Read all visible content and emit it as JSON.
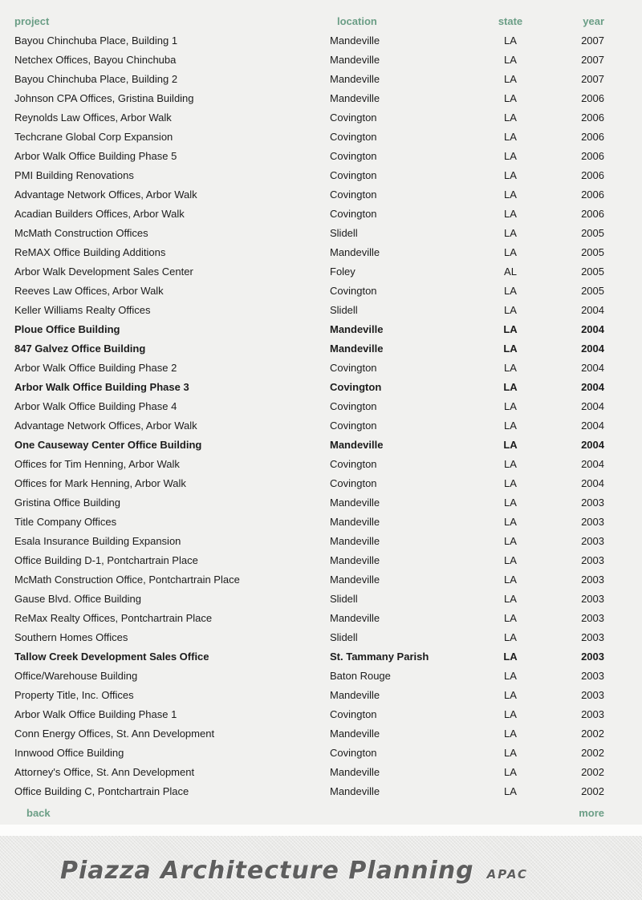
{
  "colors": {
    "accent_green": "#6b9e86",
    "page_bg": "#f1f1ef",
    "footer_bg": "#e9e9e7",
    "footer_text": "#5e5e5e",
    "row_text": "#1c1c1c"
  },
  "table": {
    "columns": [
      "project",
      "location",
      "state",
      "year"
    ],
    "rows": [
      {
        "project": "Bayou Chinchuba Place, Building 1",
        "location": "Mandeville",
        "state": "LA",
        "year": "2007",
        "bold": false
      },
      {
        "project": "Netchex Offices, Bayou Chinchuba",
        "location": "Mandeville",
        "state": "LA",
        "year": "2007",
        "bold": false
      },
      {
        "project": "Bayou Chinchuba Place, Building 2",
        "location": "Mandeville",
        "state": "LA",
        "year": "2007",
        "bold": false
      },
      {
        "project": "Johnson CPA Offices, Gristina Building",
        "location": "Mandeville",
        "state": "LA",
        "year": "2006",
        "bold": false
      },
      {
        "project": "Reynolds Law Offices, Arbor Walk",
        "location": "Covington",
        "state": "LA",
        "year": "2006",
        "bold": false
      },
      {
        "project": "Techcrane Global Corp Expansion",
        "location": "Covington",
        "state": "LA",
        "year": "2006",
        "bold": false
      },
      {
        "project": "Arbor Walk Office Building Phase 5",
        "location": "Covington",
        "state": "LA",
        "year": "2006",
        "bold": false
      },
      {
        "project": "PMI Building Renovations",
        "location": "Covington",
        "state": "LA",
        "year": "2006",
        "bold": false
      },
      {
        "project": "Advantage Network Offices, Arbor Walk",
        "location": "Covington",
        "state": "LA",
        "year": "2006",
        "bold": false
      },
      {
        "project": "Acadian Builders Offices, Arbor Walk",
        "location": "Covington",
        "state": "LA",
        "year": "2006",
        "bold": false
      },
      {
        "project": "McMath Construction Offices",
        "location": "Slidell",
        "state": "LA",
        "year": "2005",
        "bold": false
      },
      {
        "project": "ReMAX Office Building Additions",
        "location": "Mandeville",
        "state": "LA",
        "year": "2005",
        "bold": false
      },
      {
        "project": "Arbor Walk Development Sales Center",
        "location": "Foley",
        "state": "AL",
        "year": "2005",
        "bold": false
      },
      {
        "project": "Reeves Law Offices, Arbor Walk",
        "location": "Covington",
        "state": "LA",
        "year": "2005",
        "bold": false
      },
      {
        "project": "Keller Williams Realty Offices",
        "location": "Slidell",
        "state": "LA",
        "year": "2004",
        "bold": false
      },
      {
        "project": "Ploue Office Building",
        "location": "Mandeville",
        "state": "LA",
        "year": "2004",
        "bold": true
      },
      {
        "project": "847 Galvez Office Building",
        "location": "Mandeville",
        "state": "LA",
        "year": "2004",
        "bold": true
      },
      {
        "project": "Arbor Walk Office Building Phase 2",
        "location": "Covington",
        "state": "LA",
        "year": "2004",
        "bold": false
      },
      {
        "project": "Arbor Walk Office Building Phase 3",
        "location": "Covington",
        "state": "LA",
        "year": "2004",
        "bold": true
      },
      {
        "project": "Arbor Walk Office Building Phase 4",
        "location": "Covington",
        "state": "LA",
        "year": "2004",
        "bold": false
      },
      {
        "project": "Advantage Network Offices, Arbor Walk",
        "location": "Covington",
        "state": "LA",
        "year": "2004",
        "bold": false
      },
      {
        "project": "One Causeway Center Office Building",
        "location": "Mandeville",
        "state": "LA",
        "year": "2004",
        "bold": true
      },
      {
        "project": "Offices for Tim Henning, Arbor Walk",
        "location": "Covington",
        "state": "LA",
        "year": "2004",
        "bold": false
      },
      {
        "project": "Offices for Mark Henning, Arbor Walk",
        "location": "Covington",
        "state": "LA",
        "year": "2004",
        "bold": false
      },
      {
        "project": "Gristina Office Building",
        "location": "Mandeville",
        "state": "LA",
        "year": "2003",
        "bold": false
      },
      {
        "project": "Title Company Offices",
        "location": "Mandeville",
        "state": "LA",
        "year": "2003",
        "bold": false
      },
      {
        "project": "Esala Insurance Building Expansion",
        "location": "Mandeville",
        "state": "LA",
        "year": "2003",
        "bold": false
      },
      {
        "project": "Office Building D-1, Pontchartrain Place",
        "location": "Mandeville",
        "state": "LA",
        "year": "2003",
        "bold": false
      },
      {
        "project": "McMath Construction Office, Pontchartrain Place",
        "location": "Mandeville",
        "state": "LA",
        "year": "2003",
        "bold": false
      },
      {
        "project": "Gause Blvd. Office Building",
        "location": "Slidell",
        "state": "LA",
        "year": "2003",
        "bold": false
      },
      {
        "project": "ReMax Realty Offices, Pontchartrain Place",
        "location": "Mandeville",
        "state": "LA",
        "year": "2003",
        "bold": false
      },
      {
        "project": "Southern Homes Offices",
        "location": "Slidell",
        "state": "LA",
        "year": "2003",
        "bold": false
      },
      {
        "project": "Tallow Creek Development Sales Office",
        "location": "St. Tammany Parish",
        "state": "LA",
        "year": "2003",
        "bold": true
      },
      {
        "project": "Office/Warehouse Building",
        "location": "Baton Rouge",
        "state": "LA",
        "year": "2003",
        "bold": false
      },
      {
        "project": "Property Title, Inc. Offices",
        "location": "Mandeville",
        "state": "LA",
        "year": "2003",
        "bold": false
      },
      {
        "project": "Arbor Walk Office Building Phase 1",
        "location": "Covington",
        "state": "LA",
        "year": "2003",
        "bold": false
      },
      {
        "project": "Conn Energy Offices, St. Ann Development",
        "location": "Mandeville",
        "state": "LA",
        "year": "2002",
        "bold": false
      },
      {
        "project": "Innwood Office Building",
        "location": "Covington",
        "state": "LA",
        "year": "2002",
        "bold": false
      },
      {
        "project": "Attorney's Office, St. Ann Development",
        "location": "Mandeville",
        "state": "LA",
        "year": "2002",
        "bold": false
      },
      {
        "project": "Office Building C, Pontchartrain Place",
        "location": "Mandeville",
        "state": "LA",
        "year": "2002",
        "bold": false
      }
    ]
  },
  "nav": {
    "back_label": "back",
    "more_label": "more"
  },
  "footer": {
    "logo_text": "Piazza Architecture Planning",
    "logo_abbr": "APAC"
  }
}
